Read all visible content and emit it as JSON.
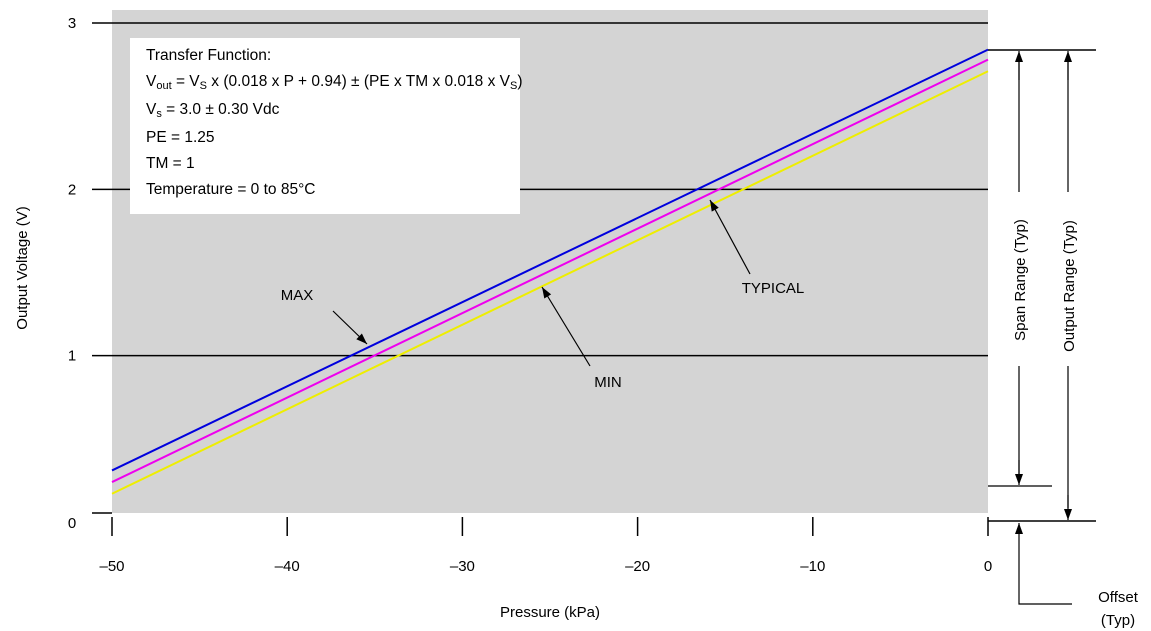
{
  "chart_data": {
    "type": "line",
    "xlabel": "Pressure (kPa)",
    "ylabel": "Output Voltage (V)",
    "xlim": [
      -50,
      0
    ],
    "ylim": [
      0,
      3
    ],
    "x_ticks": [
      -50,
      -40,
      -30,
      -20,
      -10,
      0
    ],
    "y_ticks": [
      0,
      1,
      2,
      3
    ],
    "x_tick_labels": [
      "–50",
      "–40",
      "–30",
      "–20",
      "–10",
      "0"
    ],
    "y_tick_labels": [
      "0",
      "1",
      "2",
      "3"
    ],
    "grid": "horizontal",
    "series": [
      {
        "name": "MAX",
        "color": "#0000dd",
        "x": [
          -50,
          0
        ],
        "y": [
          0.31,
          2.84
        ]
      },
      {
        "name": "TYPICAL",
        "color": "#ee00ee",
        "x": [
          -50,
          0
        ],
        "y": [
          0.24,
          2.78
        ]
      },
      {
        "name": "MIN",
        "color": "#eeee00",
        "x": [
          -50,
          0
        ],
        "y": [
          0.17,
          2.71
        ]
      }
    ],
    "annotations": {
      "max": "MAX",
      "min": "MIN",
      "typical": "TYPICAL",
      "span_range": "Span Range (Typ)",
      "output_range": "Output Range (Typ)",
      "offset_line1": "Offset",
      "offset_line2": "(Typ)"
    },
    "transfer_function": {
      "title": "Transfer Function:",
      "vout_sub": "out",
      "vout_eq": " = V",
      "vs_sub": "S",
      "formula_mid": " x (0.018 x P + 0.94) ± (PE x TM x 0.018 x V",
      "formula_end_sub": "S",
      "formula_end": ")",
      "vs_line_sub": "s",
      "vs_line": " = 3.0 ± 0.30 Vdc",
      "pe": "PE = 1.25",
      "tm": "TM = 1",
      "temperature": "Temperature = 0 to 85°C"
    },
    "colors": {
      "plot_bg": "#d4d4d4",
      "grid": "#000000"
    }
  }
}
